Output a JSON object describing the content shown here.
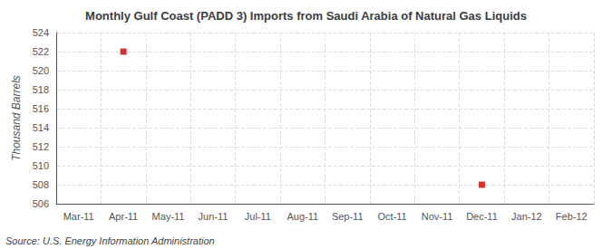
{
  "chart_data": {
    "type": "scatter",
    "title": "Monthly Gulf Coast (PADD 3) Imports from Saudi Arabia of Natural Gas Liquids",
    "ylabel": "Thousand Barrels",
    "annotation": "Source: U.S. Energy Information Administration",
    "categories": [
      "Mar-11",
      "Apr-11",
      "May-11",
      "Jun-11",
      "Jul-11",
      "Aug-11",
      "Sep-11",
      "Oct-11",
      "Nov-11",
      "Dec-11",
      "Jan-12",
      "Feb-12"
    ],
    "values": [
      null,
      522,
      null,
      null,
      null,
      null,
      null,
      null,
      null,
      508,
      null,
      null
    ],
    "color": "#cc0000",
    "marker": "square",
    "ylim": [
      506,
      524
    ],
    "yticks": [
      506,
      508,
      510,
      512,
      514,
      516,
      518,
      520,
      522,
      524
    ],
    "grid": true
  }
}
